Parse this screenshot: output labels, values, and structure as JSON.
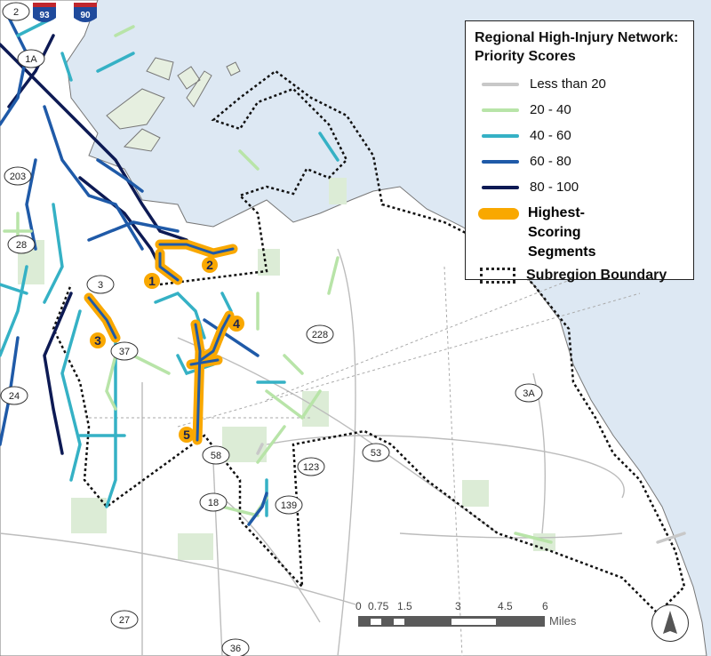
{
  "legend": {
    "title": "Regional High-Injury Network: Priority Scores",
    "items": [
      {
        "label": "Less than 20",
        "color": "#c8c8c8"
      },
      {
        "label": "20 - 40",
        "color": "#b8e4a8"
      },
      {
        "label": "40 - 60",
        "color": "#35b1c5"
      },
      {
        "label": "60 - 80",
        "color": "#1f5aa8"
      },
      {
        "label": "80 - 100",
        "color": "#0d1a54"
      }
    ],
    "highest_scoring_label": "Highest-Scoring Segments",
    "highest_scoring_color": "#f9a800",
    "boundary_label": "Subregion Boundary"
  },
  "segments": [
    "1",
    "2",
    "3",
    "4",
    "5"
  ],
  "shields": {
    "interstates": [
      "93",
      "90"
    ],
    "routes": [
      "2",
      "1A",
      "203",
      "28",
      "3",
      "37",
      "24",
      "228",
      "58",
      "18",
      "123",
      "53",
      "139",
      "3A",
      "27",
      "36"
    ]
  },
  "scale": {
    "ticks": [
      "0",
      "0.75",
      "1.5",
      "3",
      "4.5",
      "6"
    ],
    "units": "Miles"
  },
  "colors": {
    "water": "#dde8f3",
    "land": "#ffffff",
    "parks": "#dcecd6"
  },
  "north_arrow": "north-arrow-icon"
}
